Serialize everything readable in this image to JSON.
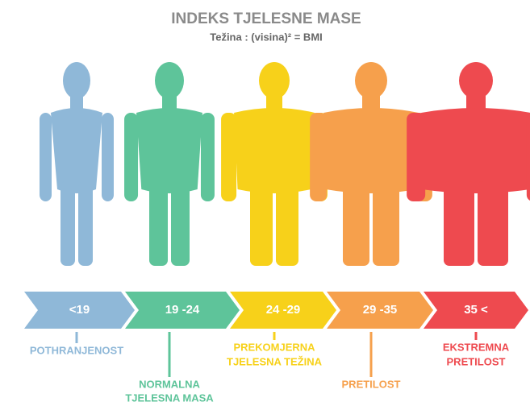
{
  "title": "INDEKS TJELESNE MASE",
  "subtitle": "Težina : (visina)² = BMI",
  "classes": [
    {
      "range": "<19",
      "label": [
        "POTHRANJENOST"
      ],
      "color": "#8fb8d8"
    },
    {
      "range": "19 -24",
      "label": [
        "NORMALNA",
        "TJELESNA MASA"
      ],
      "color": "#5ec49a"
    },
    {
      "range": "24 -29",
      "label": [
        "PREKOMJERNA",
        "TJELESNA TEŽINA"
      ],
      "color": "#f7d11a"
    },
    {
      "range": "29 -35",
      "label": [
        "PRETILOST"
      ],
      "color": "#f6a04c"
    },
    {
      "range": "35 <",
      "label": [
        "EKSTREMNA",
        "PRETILOST"
      ],
      "color": "#ee4a4f"
    }
  ]
}
